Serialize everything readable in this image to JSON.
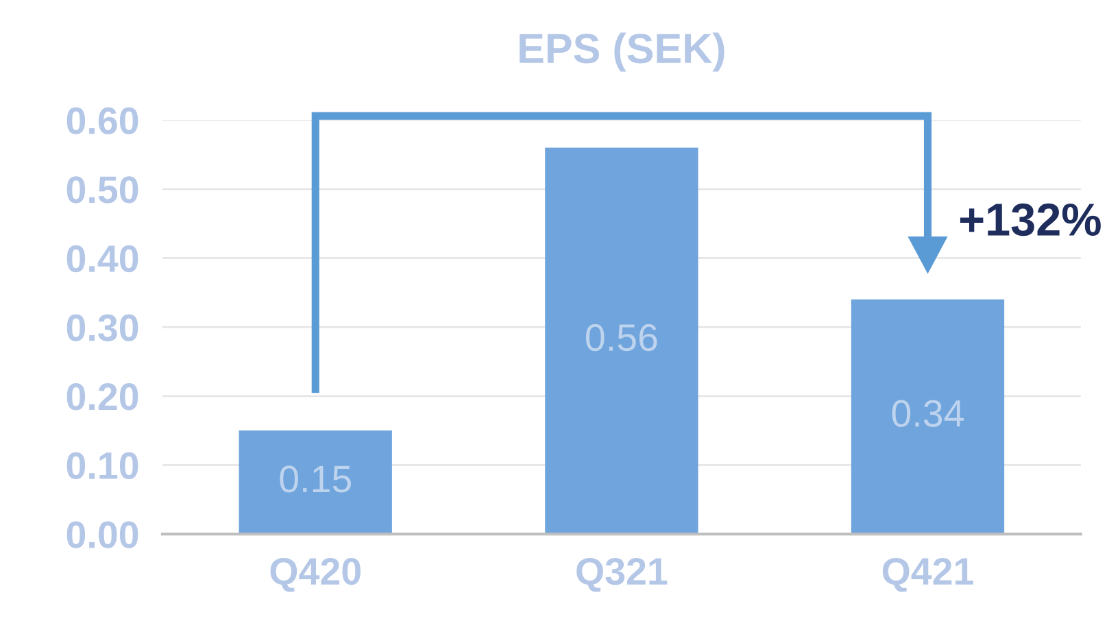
{
  "chart_data": {
    "type": "bar",
    "title": "EPS (SEK)",
    "categories": [
      "Q420",
      "Q321",
      "Q421"
    ],
    "values": [
      0.15,
      0.56,
      0.34
    ],
    "color": "#6fa4dc",
    "value_labels": [
      "0.15",
      "0.56",
      "0.34"
    ],
    "ylim": [
      0,
      0.6
    ],
    "yticks": [
      {
        "value": 0,
        "label": "0.00"
      },
      {
        "value": 0.1,
        "label": "0.10"
      },
      {
        "value": 0.2,
        "label": "0.20"
      },
      {
        "value": 0.3,
        "label": "0.30"
      },
      {
        "value": 0.4,
        "label": "0.40"
      },
      {
        "value": 0.5,
        "label": "0.50"
      },
      {
        "value": 0.6,
        "label": "0.60"
      }
    ],
    "grid": "y",
    "annotations": [
      "+132%"
    ]
  }
}
